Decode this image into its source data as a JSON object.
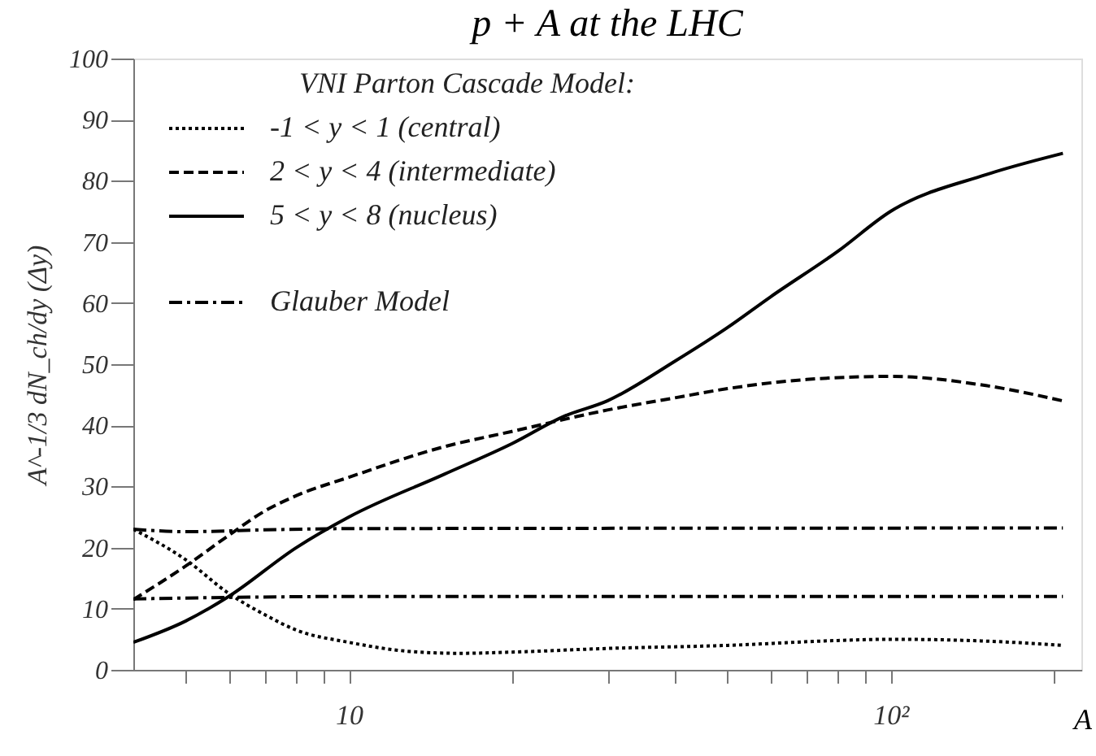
{
  "chart_data": {
    "type": "line",
    "title": "p + A at the LHC",
    "xlabel": "A",
    "ylabel": "A^-1/3 dN_ch/dy (Δy)",
    "legend_title": "VNI Parton Cascade Model:",
    "legend": "top left",
    "log": "x",
    "grid": false,
    "marker": "none",
    "xlim": [
      4,
      225
    ],
    "ylim": [
      0,
      100
    ],
    "xticks": [
      {
        "value": 5,
        "label": null
      },
      {
        "value": 6,
        "label": null
      },
      {
        "value": 7,
        "label": null
      },
      {
        "value": 8,
        "label": null
      },
      {
        "value": 9,
        "label": null
      },
      10,
      {
        "value": 20,
        "label": null
      },
      {
        "value": 30,
        "label": null
      },
      {
        "value": 40,
        "label": null
      },
      {
        "value": 50,
        "label": null
      },
      {
        "value": 60,
        "label": null
      },
      {
        "value": 70,
        "label": null
      },
      {
        "value": 80,
        "label": null
      },
      {
        "value": 90,
        "label": null
      },
      {
        "value": 100,
        "label": "10²"
      },
      {
        "value": 200,
        "label": null
      }
    ],
    "yticks": [
      0,
      10,
      20,
      30,
      40,
      50,
      60,
      70,
      80,
      90,
      100
    ],
    "series": [
      {
        "name": "-1 < y < 1  (central)",
        "color": "#000000",
        "line_style": "dotted",
        "x": [
          4,
          5,
          6,
          7,
          8,
          10,
          13,
          16,
          20,
          30,
          50,
          80,
          100,
          150,
          208
        ],
        "values": [
          23,
          18,
          12.5,
          9,
          6.5,
          4.5,
          3,
          2.7,
          2.9,
          3.5,
          4,
          4.8,
          5,
          4.7,
          4
        ]
      },
      {
        "name": "2  < y  < 4  (intermediate)",
        "color": "#000000",
        "line_style": "dashed",
        "x": [
          4,
          5,
          6,
          7,
          8,
          10,
          15,
          20,
          30,
          40,
          50,
          70,
          100,
          150,
          208
        ],
        "values": [
          11.5,
          17,
          22,
          26,
          28.5,
          31.5,
          36.5,
          39,
          42.5,
          44.5,
          46,
          47.5,
          48,
          46.5,
          44
        ]
      },
      {
        "name": "5  < y  < 8  (nucleus)",
        "color": "#000000",
        "line_style": "solid",
        "x": [
          4,
          5,
          6,
          8,
          10,
          15,
          20,
          25,
          30,
          40,
          50,
          60,
          80,
          100,
          150,
          208
        ],
        "values": [
          4.5,
          8,
          12,
          20,
          25,
          32,
          37,
          41.5,
          44,
          50.5,
          56,
          61,
          68.5,
          75,
          81,
          84.5
        ]
      },
      {
        "name": "Glauber Model",
        "color": "#000000",
        "line_style": "dashdot",
        "x": [
          4,
          5,
          7,
          10,
          208
        ],
        "values": [
          23,
          22.6,
          22.9,
          23.1,
          23.2
        ]
      },
      {
        "color": "#000000",
        "line_style": "dashdot",
        "x": [
          4,
          10,
          208
        ],
        "values": [
          11.6,
          12,
          12
        ]
      }
    ]
  }
}
